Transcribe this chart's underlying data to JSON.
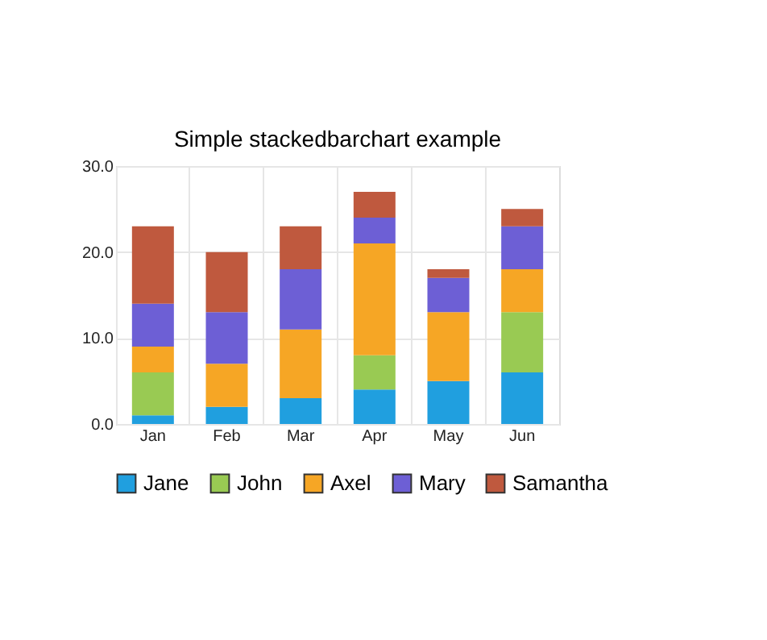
{
  "chart_data": {
    "type": "bar",
    "title": "Simple stackedbarchart example",
    "stacked": true,
    "categories": [
      "Jan",
      "Feb",
      "Mar",
      "Apr",
      "May",
      "Jun"
    ],
    "series": [
      {
        "name": "Jane",
        "color": "#209fdf",
        "values": [
          1,
          2,
          3,
          4,
          5,
          6
        ]
      },
      {
        "name": "John",
        "color": "#99ca53",
        "values": [
          5,
          0,
          0,
          4,
          0,
          7
        ]
      },
      {
        "name": "Axel",
        "color": "#f6a625",
        "values": [
          3,
          5,
          8,
          13,
          8,
          5
        ]
      },
      {
        "name": "Mary",
        "color": "#6d5fd5",
        "values": [
          5,
          6,
          7,
          3,
          4,
          5
        ]
      },
      {
        "name": "Samantha",
        "color": "#bf593e",
        "values": [
          9,
          7,
          5,
          3,
          1,
          2
        ]
      }
    ],
    "ylim": [
      0,
      30
    ],
    "yticks": [
      {
        "value": 0,
        "label": "0.0"
      },
      {
        "value": 10,
        "label": "10.0"
      },
      {
        "value": 20,
        "label": "20.0"
      },
      {
        "value": 30,
        "label": "30.0"
      }
    ],
    "grid": true,
    "legend": "bottom"
  }
}
